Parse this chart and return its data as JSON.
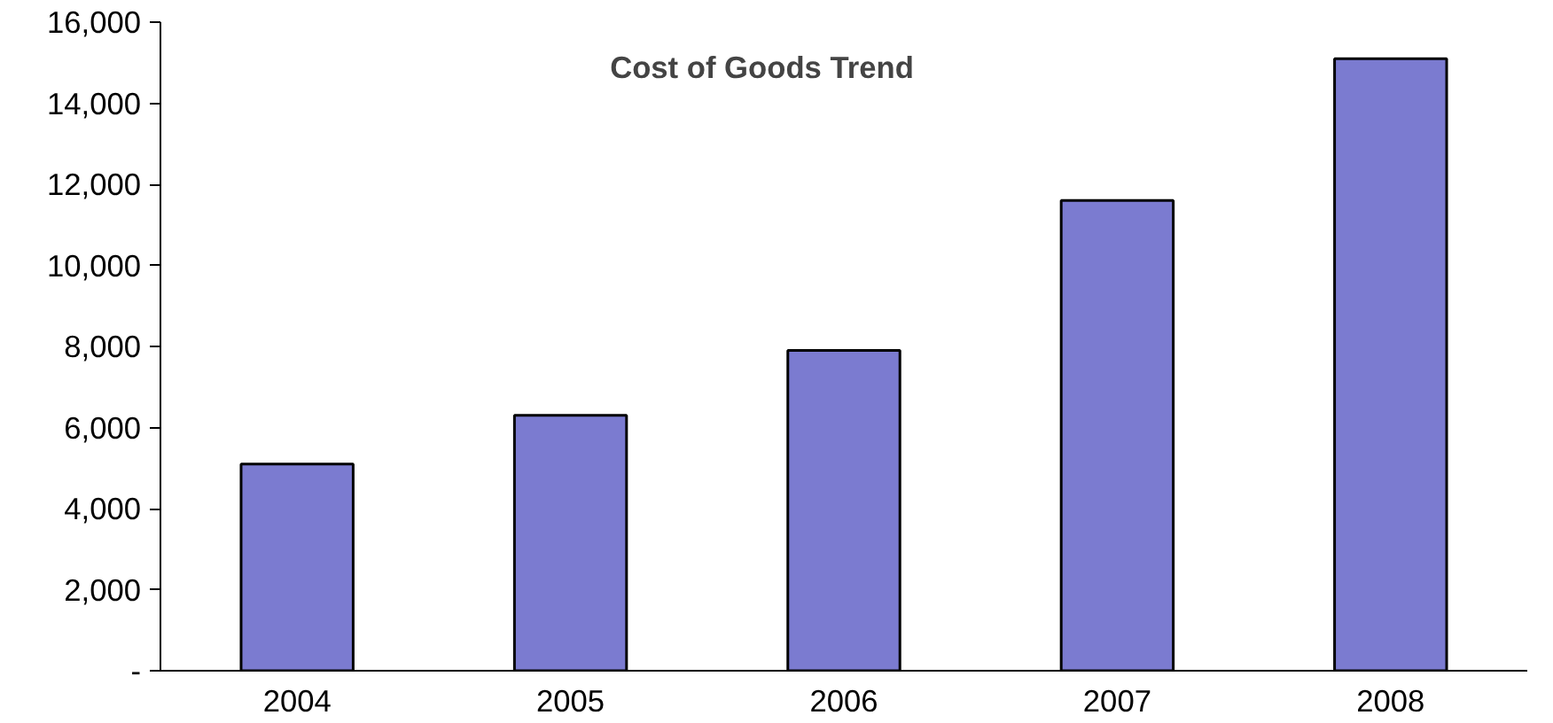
{
  "chart_data": {
    "type": "bar",
    "title": "Cost of Goods Trend",
    "categories": [
      "2004",
      "2005",
      "2006",
      "2007",
      "2008"
    ],
    "values": [
      5100,
      6300,
      7900,
      11600,
      15100
    ],
    "color": "#7b7bd0",
    "ylim": [
      0,
      16000
    ],
    "yticks": [
      {
        "value": 0,
        "label": "-"
      },
      {
        "value": 2000,
        "label": "2,000"
      },
      {
        "value": 4000,
        "label": "4,000"
      },
      {
        "value": 6000,
        "label": "6,000"
      },
      {
        "value": 8000,
        "label": "8,000"
      },
      {
        "value": 10000,
        "label": "10,000"
      },
      {
        "value": 12000,
        "label": "12,000"
      },
      {
        "value": 14000,
        "label": "14,000"
      },
      {
        "value": 16000,
        "label": "16,000"
      }
    ],
    "grid": false
  }
}
